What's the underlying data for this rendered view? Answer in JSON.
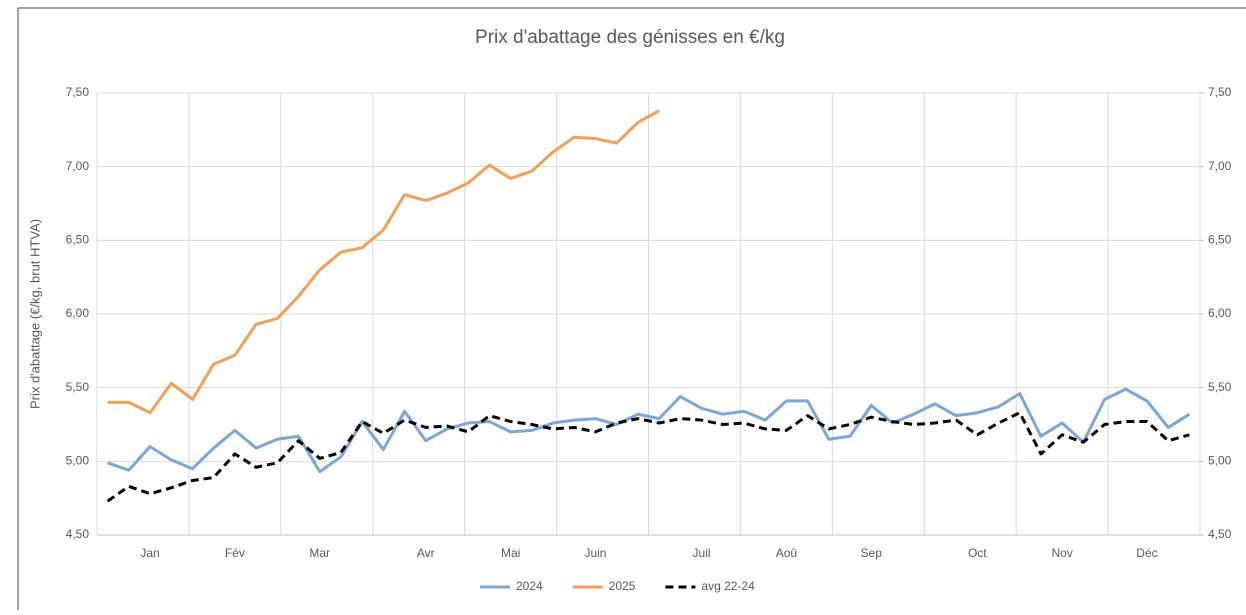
{
  "chart_data": {
    "type": "line",
    "title": "Prix d'abattage des génisses en €/kg",
    "y_label": "Prix d'abattage (€/kg, brut HTVA)",
    "categories": [
      null,
      null,
      "Jan",
      null,
      null,
      null,
      "Fév",
      null,
      null,
      null,
      "Mar",
      null,
      null,
      null,
      null,
      "Avr",
      null,
      null,
      null,
      "Mai",
      null,
      null,
      null,
      "Juin",
      null,
      null,
      null,
      null,
      "Juil",
      null,
      null,
      null,
      "Aoû",
      null,
      null,
      null,
      "Sep",
      null,
      null,
      null,
      null,
      "Oct",
      null,
      null,
      null,
      "Nov",
      null,
      null,
      null,
      "Déc",
      null,
      null
    ],
    "series": [
      {
        "name": "2024",
        "color": "#7ba7d6",
        "dashed": false,
        "values": [
          4.99,
          4.94,
          5.1,
          5.01,
          4.95,
          5.09,
          5.21,
          5.09,
          5.15,
          5.17,
          4.93,
          5.03,
          5.27,
          5.08,
          5.34,
          5.14,
          5.22,
          5.26,
          5.27,
          5.2,
          5.21,
          5.26,
          5.28,
          5.29,
          5.25,
          5.32,
          5.29,
          5.44,
          5.36,
          5.32,
          5.34,
          5.28,
          5.41,
          5.41,
          5.15,
          5.17,
          5.38,
          5.26,
          5.32,
          5.39,
          5.31,
          5.33,
          5.37,
          5.46,
          5.17,
          5.26,
          5.13,
          5.42,
          5.49,
          5.41,
          5.23,
          5.32
        ]
      },
      {
        "name": "2025",
        "color": "#f0a05a",
        "dashed": false,
        "values": [
          5.4,
          5.4,
          5.33,
          5.53,
          5.42,
          5.66,
          5.72,
          5.93,
          5.97,
          6.12,
          6.3,
          6.42,
          6.45,
          6.57,
          6.81,
          6.77,
          6.82,
          6.89,
          7.01,
          6.92,
          6.97,
          7.1,
          7.2,
          7.19,
          7.16,
          7.3,
          7.38,
          null,
          null,
          null,
          null,
          null,
          null,
          null,
          null,
          null,
          null,
          null,
          null,
          null,
          null,
          null,
          null,
          null,
          null,
          null,
          null,
          null,
          null,
          null,
          null,
          null
        ]
      },
      {
        "name": "avg 22-24",
        "color": "#000000",
        "dashed": true,
        "values": [
          4.73,
          4.83,
          4.78,
          4.82,
          4.87,
          4.89,
          5.05,
          4.96,
          4.99,
          5.14,
          5.02,
          5.06,
          5.27,
          5.19,
          5.28,
          5.23,
          5.24,
          5.2,
          5.31,
          5.27,
          5.25,
          5.22,
          5.23,
          5.2,
          5.26,
          5.29,
          5.26,
          5.29,
          5.28,
          5.25,
          5.26,
          5.22,
          5.21,
          5.31,
          5.22,
          5.25,
          5.3,
          5.27,
          5.25,
          5.26,
          5.28,
          5.18,
          5.26,
          5.33,
          5.05,
          5.18,
          5.13,
          5.25,
          5.27,
          5.27,
          5.14,
          5.18
        ]
      }
    ],
    "ylim": [
      4.5,
      7.5
    ],
    "yticks": [
      {
        "value": 4.5,
        "label": "4,50"
      },
      {
        "value": 5,
        "label": "5,00"
      },
      {
        "value": 5.5,
        "label": "5,50"
      },
      {
        "value": 6,
        "label": "6,00"
      },
      {
        "value": 6.5,
        "label": "6,50"
      },
      {
        "value": 7,
        "label": "7,00"
      },
      {
        "value": 7.5,
        "label": "7,50"
      }
    ],
    "y2lim": [
      4.5,
      7.5
    ],
    "y2ticks": [
      {
        "value": 4.5,
        "label": "4,50"
      },
      {
        "value": 5,
        "label": "5,00"
      },
      {
        "value": 5.5,
        "label": "5,50"
      },
      {
        "value": 6,
        "label": "6,00"
      },
      {
        "value": 6.5,
        "label": "6,50"
      },
      {
        "value": 7,
        "label": "7,00"
      },
      {
        "value": 7.5,
        "label": "7,50"
      }
    ],
    "grid": true,
    "legend": "bottom"
  }
}
